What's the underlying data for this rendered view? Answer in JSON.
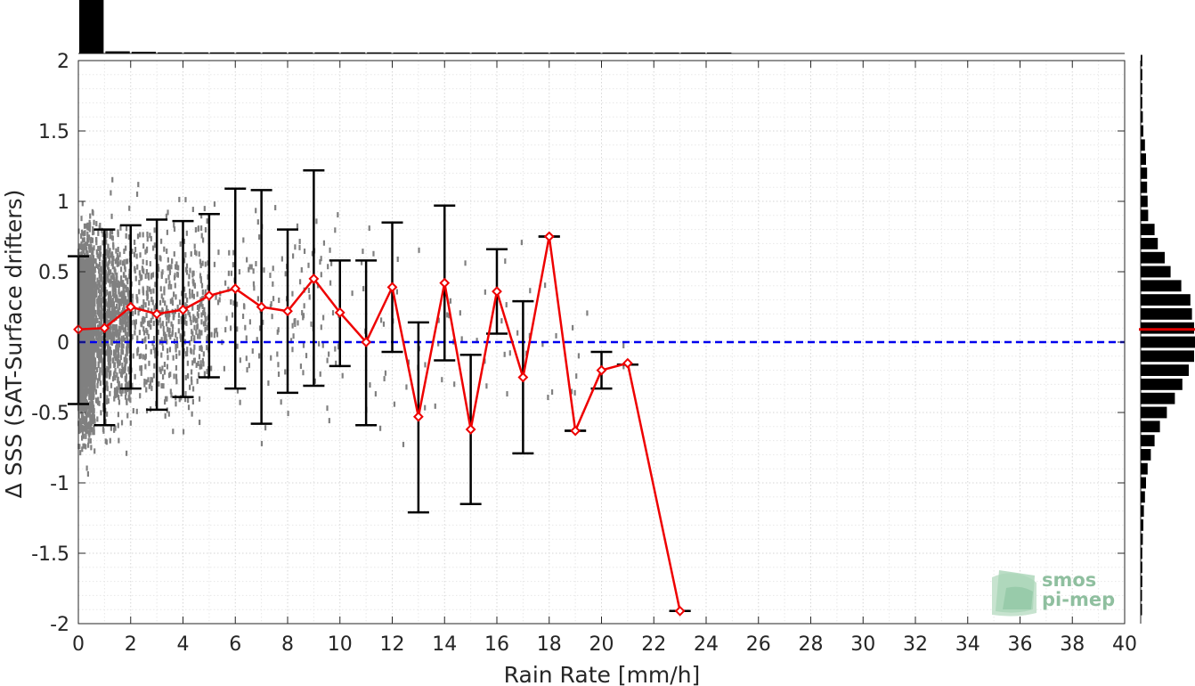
{
  "chart_data": {
    "type": "line",
    "xlabel": "Rain Rate [mm/h]",
    "ylabel": "Δ SSS (SAT-Surface drifters)",
    "xlim": [
      0,
      40
    ],
    "ylim": [
      -2,
      2
    ],
    "xticks": [
      "0",
      "2",
      "4",
      "6",
      "8",
      "10",
      "12",
      "14",
      "16",
      "18",
      "20",
      "22",
      "24",
      "26",
      "28",
      "30",
      "32",
      "34",
      "36",
      "38",
      "40"
    ],
    "yticks": [
      "-2",
      "-1.5",
      "-1",
      "-0.5",
      "0",
      "0.5",
      "1",
      "1.5",
      "2"
    ],
    "grid": true,
    "reference_line": {
      "y": 0,
      "style": "dashed",
      "color": "#0000ee"
    },
    "series": [
      {
        "color": "#ee0000",
        "x": [
          0,
          1,
          2,
          3,
          4,
          5,
          6,
          7,
          8,
          9,
          10,
          11,
          12,
          13,
          14,
          15,
          16,
          17,
          18,
          19,
          20,
          21,
          23
        ],
        "mean": [
          0.09,
          0.1,
          0.25,
          0.2,
          0.23,
          0.33,
          0.38,
          0.25,
          0.22,
          0.45,
          0.21,
          0.0,
          0.39,
          -0.53,
          0.42,
          -0.62,
          0.36,
          -0.25,
          0.75,
          -0.63,
          -0.2,
          -0.15,
          -1.91
        ],
        "err_low": [
          -0.44,
          -0.59,
          -0.33,
          -0.48,
          -0.39,
          -0.25,
          -0.33,
          -0.58,
          -0.36,
          -0.31,
          -0.17,
          -0.59,
          -0.07,
          -1.21,
          -0.13,
          -1.15,
          0.06,
          -0.79,
          0.75,
          -0.63,
          -0.33,
          -0.16,
          -1.91
        ],
        "err_high": [
          0.61,
          0.8,
          0.83,
          0.87,
          0.86,
          0.91,
          1.09,
          1.08,
          0.8,
          1.22,
          0.58,
          0.58,
          0.85,
          0.14,
          0.97,
          -0.09,
          0.66,
          0.29,
          0.75,
          -0.63,
          -0.07,
          -0.16,
          -1.91
        ]
      }
    ],
    "scatter_color": "#808080",
    "top_histogram": {
      "bin_width": 1,
      "relative_counts": [
        1.0,
        0.04,
        0.03,
        0.02,
        0.02,
        0.02,
        0.02,
        0.02,
        0.02,
        0.02,
        0.02,
        0.02,
        0.015,
        0.015,
        0.015,
        0.015,
        0.01,
        0.01,
        0.01,
        0.01,
        0.01,
        0.008,
        0.005,
        0.005,
        0.005
      ]
    },
    "right_histogram": {
      "bin_centers": [
        2.0,
        1.9,
        1.8,
        1.7,
        1.6,
        1.5,
        1.4,
        1.3,
        1.2,
        1.1,
        1.0,
        0.9,
        0.8,
        0.7,
        0.6,
        0.5,
        0.4,
        0.3,
        0.2,
        0.1,
        0.0,
        -0.1,
        -0.2,
        -0.3,
        -0.4,
        -0.5,
        -0.6,
        -0.7,
        -0.8,
        -0.9,
        -1.0,
        -1.1,
        -1.2,
        -1.3,
        -1.4,
        -1.5,
        -1.6,
        -1.7,
        -1.8,
        -1.9
      ],
      "relative_counts": [
        0.03,
        0.03,
        0.03,
        0.03,
        0.04,
        0.05,
        0.08,
        0.1,
        0.12,
        0.12,
        0.13,
        0.14,
        0.26,
        0.32,
        0.45,
        0.56,
        0.76,
        0.93,
        0.96,
        1.0,
        1.02,
        1.0,
        0.9,
        0.78,
        0.64,
        0.49,
        0.36,
        0.26,
        0.19,
        0.13,
        0.1,
        0.08,
        0.06,
        0.05,
        0.04,
        0.03,
        0.03,
        0.03,
        0.02,
        0.02
      ],
      "mean_marker": 0.09,
      "mean_color": "#dd0000"
    }
  },
  "logo": {
    "line1": "smos",
    "line2": "pi-mep"
  }
}
